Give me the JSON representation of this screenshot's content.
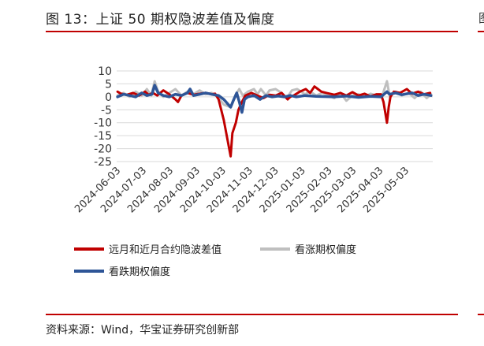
{
  "figure": {
    "title": "图 13：上证 50 期权隐波差值及偏度",
    "source": "资料来源：Wind，华宝证券研究创新部",
    "right_edge_glyph": "图"
  },
  "colors": {
    "rule": "#c00000",
    "series_diff": "#c00000",
    "series_call_skew": "#bfbfbf",
    "series_put_skew": "#2e5597"
  },
  "chart_data": {
    "type": "line",
    "ylim": [
      -25,
      10
    ],
    "yticks": [
      10,
      5,
      0,
      -5,
      -10,
      -15,
      -20,
      -25
    ],
    "grid": true,
    "xlim": [
      "2024-05-29",
      "2025-05-30"
    ],
    "xticks": [
      "2024-06-03",
      "2024-07-03",
      "2024-08-03",
      "2024-09-03",
      "2024-10-03",
      "2024-11-03",
      "2024-12-03",
      "2025-01-03",
      "2025-02-03",
      "2025-03-03",
      "2025-04-03",
      "2025-05-03"
    ],
    "legend_position": "bottom",
    "series": [
      {
        "name": "远月和近月合约隐波差值",
        "color": "#c00000",
        "points": [
          [
            "2024-05-30",
            2.0
          ],
          [
            "2024-06-03",
            1.2
          ],
          [
            "2024-06-10",
            0.8
          ],
          [
            "2024-06-17",
            1.5
          ],
          [
            "2024-06-24",
            0.5
          ],
          [
            "2024-07-01",
            2.0
          ],
          [
            "2024-07-05",
            0.8
          ],
          [
            "2024-07-10",
            1.5
          ],
          [
            "2024-07-15",
            0.5
          ],
          [
            "2024-07-22",
            2.5
          ],
          [
            "2024-07-29",
            1.0
          ],
          [
            "2024-08-05",
            -1.0
          ],
          [
            "2024-08-08",
            -2.0
          ],
          [
            "2024-08-12",
            0.5
          ],
          [
            "2024-08-19",
            1.5
          ],
          [
            "2024-08-26",
            0.8
          ],
          [
            "2024-09-02",
            1.2
          ],
          [
            "2024-09-09",
            1.5
          ],
          [
            "2024-09-16",
            1.0
          ],
          [
            "2024-09-20",
            1.2
          ],
          [
            "2024-09-24",
            -1.0
          ],
          [
            "2024-09-27",
            -5.0
          ],
          [
            "2024-09-30",
            -9.0
          ],
          [
            "2024-10-08",
            -23.0
          ],
          [
            "2024-10-10",
            -14.0
          ],
          [
            "2024-10-14",
            -10.0
          ],
          [
            "2024-10-17",
            -5.0
          ],
          [
            "2024-10-21",
            -2.0
          ],
          [
            "2024-10-25",
            0.5
          ],
          [
            "2024-11-01",
            1.5
          ],
          [
            "2024-11-08",
            0.5
          ],
          [
            "2024-11-15",
            -0.5
          ],
          [
            "2024-11-22",
            0.8
          ],
          [
            "2024-11-29",
            0.5
          ],
          [
            "2024-12-06",
            1.5
          ],
          [
            "2024-12-13",
            -1.0
          ],
          [
            "2024-12-16",
            0.0
          ],
          [
            "2024-12-20",
            0.5
          ],
          [
            "2024-12-27",
            2.0
          ],
          [
            "2025-01-03",
            3.0
          ],
          [
            "2025-01-08",
            1.5
          ],
          [
            "2025-01-13",
            4.0
          ],
          [
            "2025-01-17",
            3.0
          ],
          [
            "2025-01-21",
            2.0
          ],
          [
            "2025-01-27",
            1.5
          ],
          [
            "2025-02-05",
            0.8
          ],
          [
            "2025-02-12",
            1.5
          ],
          [
            "2025-02-19",
            0.5
          ],
          [
            "2025-02-26",
            1.8
          ],
          [
            "2025-03-05",
            0.5
          ],
          [
            "2025-03-12",
            1.2
          ],
          [
            "2025-03-19",
            0.2
          ],
          [
            "2025-03-26",
            1.0
          ],
          [
            "2025-03-31",
            1.0
          ],
          [
            "2025-04-03",
            -2.0
          ],
          [
            "2025-04-07",
            -10.0
          ],
          [
            "2025-04-09",
            -4.0
          ],
          [
            "2025-04-11",
            0.0
          ],
          [
            "2025-04-15",
            2.0
          ],
          [
            "2025-04-22",
            1.5
          ],
          [
            "2025-04-30",
            3.0
          ],
          [
            "2025-05-06",
            1.2
          ],
          [
            "2025-05-13",
            2.0
          ],
          [
            "2025-05-20",
            1.0
          ],
          [
            "2025-05-27",
            1.5
          ]
        ]
      },
      {
        "name": "看涨期权偏度",
        "color": "#bfbfbf",
        "points": [
          [
            "2024-05-30",
            0.5
          ],
          [
            "2024-06-06",
            1.5
          ],
          [
            "2024-06-13",
            0.0
          ],
          [
            "2024-06-20",
            2.0
          ],
          [
            "2024-06-27",
            0.5
          ],
          [
            "2024-07-03",
            3.0
          ],
          [
            "2024-07-08",
            0.5
          ],
          [
            "2024-07-12",
            6.0
          ],
          [
            "2024-07-16",
            2.0
          ],
          [
            "2024-07-22",
            0.0
          ],
          [
            "2024-07-29",
            1.5
          ],
          [
            "2024-08-05",
            3.0
          ],
          [
            "2024-08-12",
            0.5
          ],
          [
            "2024-08-19",
            2.0
          ],
          [
            "2024-08-26",
            1.0
          ],
          [
            "2024-09-02",
            2.5
          ],
          [
            "2024-09-09",
            1.0
          ],
          [
            "2024-09-16",
            1.5
          ],
          [
            "2024-09-23",
            0.0
          ],
          [
            "2024-09-30",
            -3.0
          ],
          [
            "2024-10-08",
            -4.0
          ],
          [
            "2024-10-14",
            1.0
          ],
          [
            "2024-10-18",
            3.0
          ],
          [
            "2024-10-22",
            0.5
          ],
          [
            "2024-10-28",
            2.0
          ],
          [
            "2024-11-04",
            3.0
          ],
          [
            "2024-11-08",
            1.0
          ],
          [
            "2024-11-12",
            3.0
          ],
          [
            "2024-11-18",
            0.5
          ],
          [
            "2024-11-22",
            2.5
          ],
          [
            "2024-11-29",
            3.0
          ],
          [
            "2024-12-06",
            1.5
          ],
          [
            "2024-12-12",
            -0.5
          ],
          [
            "2024-12-18",
            2.5
          ],
          [
            "2024-12-24",
            3.0
          ],
          [
            "2025-01-02",
            1.0
          ],
          [
            "2025-01-08",
            2.0
          ],
          [
            "2025-01-15",
            0.5
          ],
          [
            "2025-01-22",
            1.5
          ],
          [
            "2025-02-05",
            -0.5
          ],
          [
            "2025-02-12",
            1.5
          ],
          [
            "2025-02-19",
            -1.5
          ],
          [
            "2025-02-26",
            0.5
          ],
          [
            "2025-03-05",
            1.0
          ],
          [
            "2025-03-12",
            0.0
          ],
          [
            "2025-03-19",
            1.2
          ],
          [
            "2025-03-26",
            0.5
          ],
          [
            "2025-04-02",
            1.0
          ],
          [
            "2025-04-07",
            6.0
          ],
          [
            "2025-04-10",
            0.5
          ],
          [
            "2025-04-17",
            2.0
          ],
          [
            "2025-04-24",
            0.5
          ],
          [
            "2025-05-02",
            1.5
          ],
          [
            "2025-05-09",
            -0.5
          ],
          [
            "2025-05-16",
            2.0
          ],
          [
            "2025-05-23",
            -0.5
          ],
          [
            "2025-05-28",
            1.0
          ]
        ]
      },
      {
        "name": "看跌期权偏度",
        "color": "#2e5597",
        "points": [
          [
            "2024-05-30",
            0.0
          ],
          [
            "2024-06-06",
            1.0
          ],
          [
            "2024-06-13",
            0.5
          ],
          [
            "2024-06-20",
            0.0
          ],
          [
            "2024-06-27",
            1.5
          ],
          [
            "2024-07-03",
            0.5
          ],
          [
            "2024-07-09",
            1.0
          ],
          [
            "2024-07-12",
            4.5
          ],
          [
            "2024-07-16",
            1.5
          ],
          [
            "2024-07-22",
            0.5
          ],
          [
            "2024-07-29",
            0.0
          ],
          [
            "2024-08-05",
            1.0
          ],
          [
            "2024-08-12",
            0.5
          ],
          [
            "2024-08-19",
            1.5
          ],
          [
            "2024-08-22",
            3.0
          ],
          [
            "2024-08-26",
            0.5
          ],
          [
            "2024-09-02",
            1.0
          ],
          [
            "2024-09-09",
            1.5
          ],
          [
            "2024-09-16",
            1.0
          ],
          [
            "2024-09-24",
            0.5
          ],
          [
            "2024-09-30",
            -1.0
          ],
          [
            "2024-10-08",
            -4.0
          ],
          [
            "2024-10-11",
            -1.5
          ],
          [
            "2024-10-15",
            1.5
          ],
          [
            "2024-10-18",
            -2.0
          ],
          [
            "2024-10-21",
            -6.0
          ],
          [
            "2024-10-24",
            -1.0
          ],
          [
            "2024-10-28",
            0.0
          ],
          [
            "2024-11-04",
            0.5
          ],
          [
            "2024-11-11",
            -1.0
          ],
          [
            "2024-11-18",
            0.5
          ],
          [
            "2024-11-25",
            0.0
          ],
          [
            "2024-12-02",
            0.3
          ],
          [
            "2024-12-09",
            0.0
          ],
          [
            "2024-12-16",
            0.5
          ],
          [
            "2024-12-23",
            0.0
          ],
          [
            "2025-01-02",
            0.5
          ],
          [
            "2025-01-15",
            0.2
          ],
          [
            "2025-02-05",
            0.0
          ],
          [
            "2025-02-19",
            0.3
          ],
          [
            "2025-03-05",
            -0.2
          ],
          [
            "2025-03-19",
            0.2
          ],
          [
            "2025-03-31",
            0.0
          ],
          [
            "2025-04-07",
            2.0
          ],
          [
            "2025-04-10",
            1.0
          ],
          [
            "2025-04-17",
            1.5
          ],
          [
            "2025-04-24",
            0.8
          ],
          [
            "2025-05-06",
            1.5
          ],
          [
            "2025-05-13",
            0.5
          ],
          [
            "2025-05-20",
            1.0
          ],
          [
            "2025-05-28",
            0.5
          ]
        ]
      }
    ]
  }
}
